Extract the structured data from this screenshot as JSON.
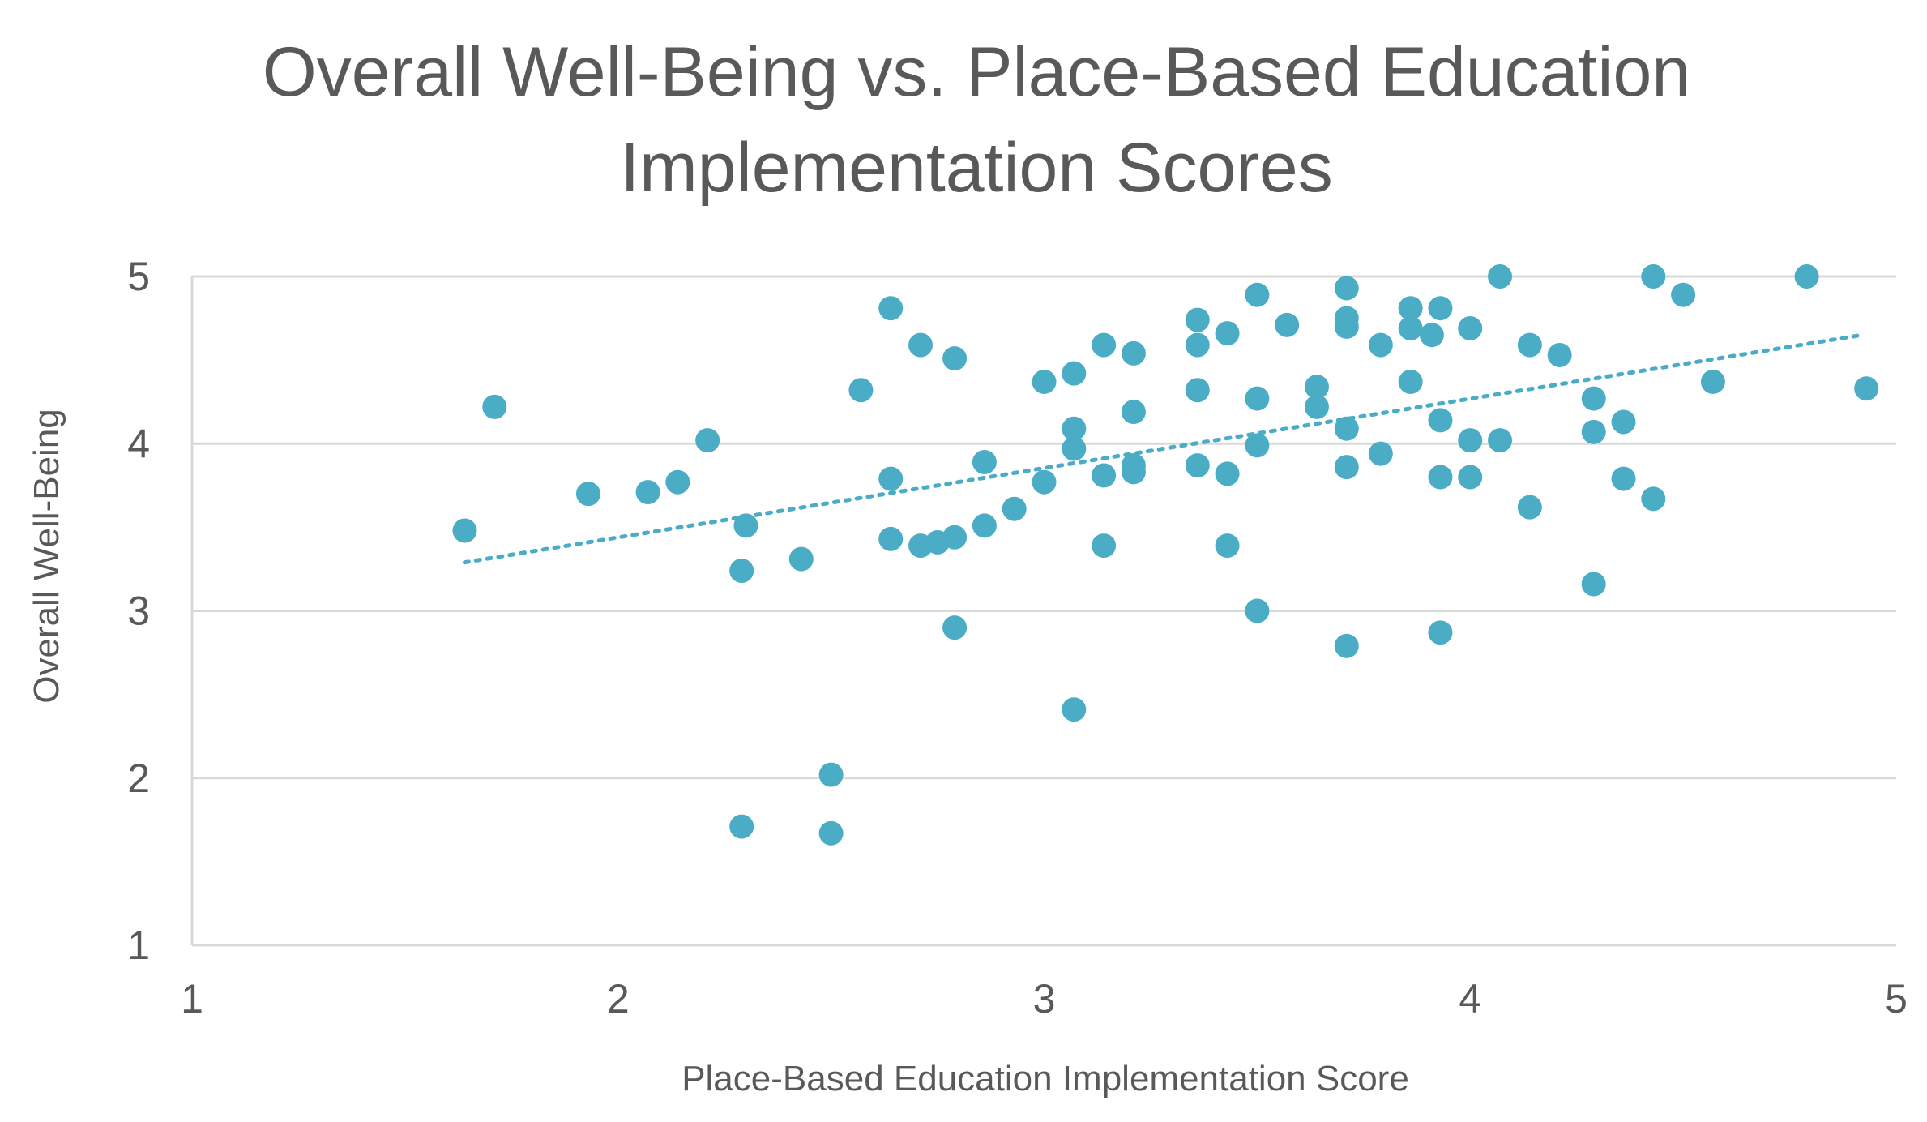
{
  "chart_data": {
    "type": "scatter",
    "title": "Overall Well-Being vs. Place-Based Education Implementation Scores",
    "title_lines": [
      "Overall Well-Being vs. Place-Based Education",
      "Implementation Scores"
    ],
    "xlabel": "Place-Based Education Implementation Score",
    "ylabel": "Overall Well-Being",
    "xlim": [
      1,
      5
    ],
    "ylim": [
      1,
      5
    ],
    "x_ticks": [
      "1",
      "2",
      "3",
      "4",
      "5"
    ],
    "y_ticks": [
      "1",
      "2",
      "3",
      "4",
      "5"
    ],
    "grid": true,
    "legend": "none",
    "marker_color": "#4BACC6",
    "trendline": {
      "type": "linear",
      "style": "dotted",
      "from": [
        1.64,
        3.29
      ],
      "to": [
        4.92,
        4.65
      ]
    },
    "series": [
      {
        "points": [
          [
            1.64,
            3.48
          ],
          [
            1.71,
            4.22
          ],
          [
            1.93,
            3.7
          ],
          [
            2.07,
            3.71
          ],
          [
            2.14,
            3.77
          ],
          [
            2.21,
            4.02
          ],
          [
            2.29,
            3.24
          ],
          [
            2.3,
            3.51
          ],
          [
            2.29,
            1.71
          ],
          [
            2.43,
            3.31
          ],
          [
            2.5,
            2.02
          ],
          [
            2.5,
            1.67
          ],
          [
            2.57,
            4.32
          ],
          [
            2.64,
            4.81
          ],
          [
            2.64,
            3.79
          ],
          [
            2.64,
            3.43
          ],
          [
            2.71,
            4.59
          ],
          [
            2.71,
            3.39
          ],
          [
            2.75,
            3.41
          ],
          [
            2.79,
            3.44
          ],
          [
            2.79,
            4.51
          ],
          [
            2.79,
            2.9
          ],
          [
            2.86,
            3.89
          ],
          [
            2.86,
            3.51
          ],
          [
            2.93,
            3.61
          ],
          [
            3.0,
            4.37
          ],
          [
            3.0,
            3.77
          ],
          [
            3.07,
            4.42
          ],
          [
            3.07,
            4.09
          ],
          [
            3.07,
            3.97
          ],
          [
            3.07,
            2.41
          ],
          [
            3.14,
            4.59
          ],
          [
            3.14,
            3.81
          ],
          [
            3.14,
            3.39
          ],
          [
            3.21,
            4.54
          ],
          [
            3.21,
            4.19
          ],
          [
            3.21,
            3.87
          ],
          [
            3.21,
            3.83
          ],
          [
            3.36,
            4.74
          ],
          [
            3.36,
            4.59
          ],
          [
            3.36,
            4.32
          ],
          [
            3.36,
            3.87
          ],
          [
            3.43,
            4.66
          ],
          [
            3.43,
            3.82
          ],
          [
            3.43,
            3.39
          ],
          [
            3.5,
            4.89
          ],
          [
            3.5,
            4.27
          ],
          [
            3.5,
            3.99
          ],
          [
            3.5,
            3.0
          ],
          [
            3.57,
            4.71
          ],
          [
            3.64,
            4.34
          ],
          [
            3.64,
            4.22
          ],
          [
            3.71,
            4.93
          ],
          [
            3.71,
            4.75
          ],
          [
            3.71,
            4.7
          ],
          [
            3.71,
            4.09
          ],
          [
            3.71,
            3.86
          ],
          [
            3.71,
            2.79
          ],
          [
            3.79,
            4.59
          ],
          [
            3.79,
            3.94
          ],
          [
            3.86,
            4.81
          ],
          [
            3.86,
            4.69
          ],
          [
            3.86,
            4.37
          ],
          [
            3.91,
            4.65
          ],
          [
            3.93,
            4.81
          ],
          [
            3.93,
            4.14
          ],
          [
            3.93,
            3.8
          ],
          [
            3.93,
            2.87
          ],
          [
            4.0,
            4.69
          ],
          [
            4.0,
            4.02
          ],
          [
            4.0,
            3.8
          ],
          [
            4.07,
            5.0
          ],
          [
            4.07,
            4.02
          ],
          [
            4.14,
            4.59
          ],
          [
            4.14,
            3.62
          ],
          [
            4.21,
            4.53
          ],
          [
            4.29,
            4.27
          ],
          [
            4.29,
            4.07
          ],
          [
            4.29,
            3.16
          ],
          [
            4.36,
            4.13
          ],
          [
            4.36,
            3.79
          ],
          [
            4.43,
            5.0
          ],
          [
            4.43,
            3.67
          ],
          [
            4.5,
            4.89
          ],
          [
            4.57,
            4.37
          ],
          [
            4.79,
            5.0
          ],
          [
            4.93,
            4.33
          ]
        ]
      }
    ]
  }
}
